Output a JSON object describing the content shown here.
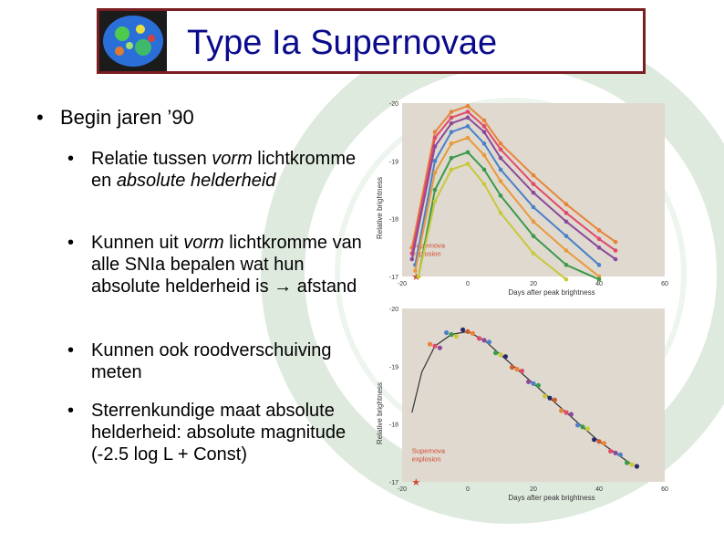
{
  "slide": {
    "title": "Type Ia Supernovae",
    "main_bullet": "Begin jaren ’90",
    "sub_bullets": [
      {
        "parts": [
          [
            "Relatie tussen ",
            false
          ],
          [
            "vorm",
            true
          ],
          [
            " lichtkromme en ",
            false
          ],
          [
            "absolute",
            true
          ],
          [
            " helderheid",
            true
          ]
        ]
      },
      {
        "parts": [
          [
            "Kunnen uit ",
            false
          ],
          [
            "vorm",
            true
          ],
          [
            " lichtkromme van alle SNIa bepalen wat hun absolute helderheid is ",
            false
          ],
          [
            "→",
            false
          ],
          [
            " afstand",
            false
          ]
        ]
      },
      {
        "parts": [
          [
            "Kunnen ook roodverschuiving meten",
            false
          ]
        ]
      },
      {
        "parts": [
          [
            "Sterrenkundige maat absolute helderheid: absolute magnitude (-2.5 log L + Const)",
            false
          ]
        ]
      }
    ],
    "colors": {
      "title": "#0a0a8c",
      "frame": "#7a1e22",
      "plot_bg": "#dfd9cf",
      "annotation": "#d24a30"
    },
    "icons": [
      "cmb-map-icon",
      "university-seal-watermark"
    ]
  },
  "chart_data": [
    {
      "type": "line",
      "xlabel": "Days after peak brightness",
      "ylabel": "Relative brightness",
      "xlim": [
        -20,
        60
      ],
      "ylim": [
        -17,
        -20
      ],
      "xticks": [
        "-20",
        "0",
        "20",
        "40",
        "60"
      ],
      "yticks": [
        "-20",
        "-19",
        "-18",
        "-17"
      ],
      "annotation": "Supernova explosion",
      "series": [
        {
          "color": "#e8843a",
          "x": [
            -17,
            -10,
            -5,
            0,
            5,
            10,
            20,
            30,
            40,
            45
          ],
          "y": [
            -17.5,
            -19.5,
            -19.85,
            -19.95,
            -19.7,
            -19.3,
            -18.75,
            -18.25,
            -17.8,
            -17.6
          ]
        },
        {
          "color": "#e04a6a",
          "x": [
            -17,
            -10,
            -5,
            0,
            5,
            10,
            20,
            30,
            40,
            45
          ],
          "y": [
            -17.4,
            -19.4,
            -19.75,
            -19.85,
            -19.6,
            -19.2,
            -18.6,
            -18.1,
            -17.65,
            -17.45
          ]
        },
        {
          "color": "#8a4a9a",
          "x": [
            -17,
            -10,
            -5,
            0,
            5,
            10,
            20,
            30,
            40,
            45
          ],
          "y": [
            -17.3,
            -19.25,
            -19.65,
            -19.75,
            -19.5,
            -19.05,
            -18.45,
            -17.95,
            -17.5,
            -17.3
          ]
        },
        {
          "color": "#4a80c8",
          "x": [
            -16,
            -10,
            -5,
            0,
            5,
            10,
            20,
            30,
            40
          ],
          "y": [
            -17.2,
            -19.0,
            -19.5,
            -19.6,
            -19.3,
            -18.85,
            -18.2,
            -17.7,
            -17.2
          ]
        },
        {
          "color": "#e89a3a",
          "x": [
            -16,
            -10,
            -5,
            0,
            5,
            10,
            20,
            30,
            40
          ],
          "y": [
            -17.1,
            -18.8,
            -19.3,
            -19.4,
            -19.1,
            -18.65,
            -17.95,
            -17.45,
            -17.0
          ]
        },
        {
          "color": "#3a9a4a",
          "x": [
            -15,
            -10,
            -5,
            0,
            5,
            10,
            20,
            30,
            40
          ],
          "y": [
            -17.0,
            -18.5,
            -19.05,
            -19.15,
            -18.85,
            -18.4,
            -17.7,
            -17.2,
            -16.95
          ]
        },
        {
          "color": "#c8c83a",
          "x": [
            -15,
            -10,
            -5,
            0,
            5,
            10,
            20,
            30
          ],
          "y": [
            -17.0,
            -18.3,
            -18.85,
            -18.95,
            -18.6,
            -18.1,
            -17.4,
            -16.95
          ]
        }
      ]
    },
    {
      "type": "scatter",
      "xlabel": "Days after peak brightness",
      "ylabel": "Relative brightness",
      "xlim": [
        -20,
        60
      ],
      "ylim": [
        -17,
        -20
      ],
      "xticks": [
        "-20",
        "0",
        "20",
        "40",
        "60"
      ],
      "yticks": [
        "-20",
        "-19",
        "-18",
        "-17"
      ],
      "annotation": "Supernova explosion",
      "curve": {
        "x": [
          -17,
          -14,
          -10,
          -5,
          0,
          5,
          10,
          15,
          20,
          25,
          30,
          35,
          40,
          45,
          50
        ],
        "y": [
          -18.2,
          -18.9,
          -19.35,
          -19.55,
          -19.6,
          -19.45,
          -19.2,
          -18.95,
          -18.7,
          -18.45,
          -18.2,
          -17.95,
          -17.7,
          -17.5,
          -17.3
        ]
      }
    }
  ]
}
